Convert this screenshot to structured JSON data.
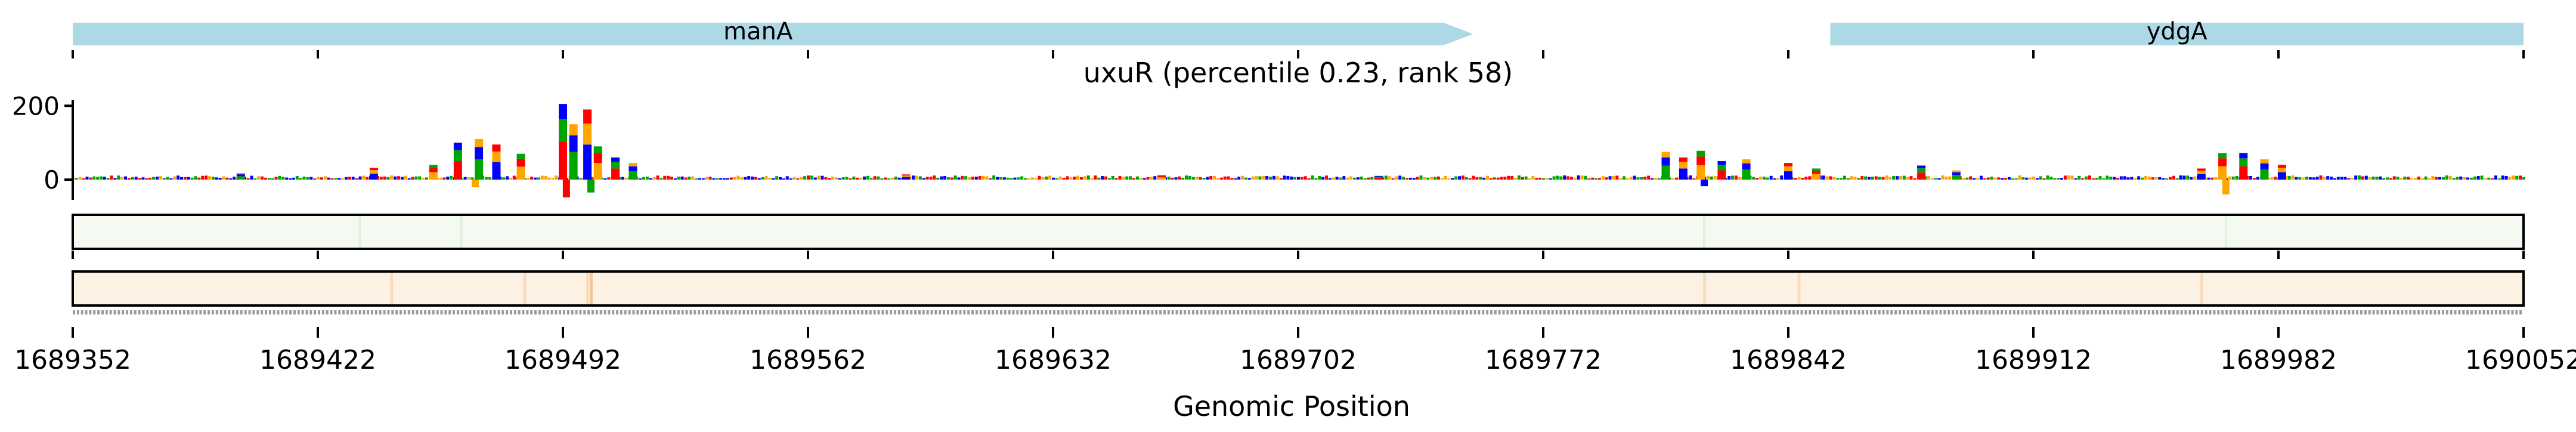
{
  "chart_data": {
    "type": "genome-track",
    "title": "uxuR (percentile 0.23, rank 58)",
    "xlabel": "Genomic Position",
    "xlim": [
      1689352,
      1690052
    ],
    "x_ticks": [
      1689352,
      1689422,
      1689492,
      1689562,
      1689632,
      1689702,
      1689772,
      1689842,
      1689912,
      1689982,
      1690052
    ],
    "x_tick_labels": [
      "1689352",
      "1689422",
      "1689492",
      "1689562",
      "1689632",
      "1689702",
      "1689772",
      "1689842",
      "1689912",
      "1689982",
      "1690052"
    ],
    "genes": [
      {
        "name": "manA",
        "start": 1689352,
        "end": 1689752,
        "strand": "+"
      },
      {
        "name": "ydgA",
        "start": 1689854,
        "end": 1690052,
        "strand": "+"
      }
    ],
    "logo_track": {
      "y_ticks": [
        0,
        200
      ],
      "ylim": [
        -55,
        215
      ],
      "peaks": [
        {
          "x": 1689400,
          "value": 18
        },
        {
          "x": 1689438,
          "value": 32
        },
        {
          "x": 1689455,
          "value": 40
        },
        {
          "x": 1689462,
          "value": 100
        },
        {
          "x": 1689468,
          "value": 110
        },
        {
          "x": 1689473,
          "value": 95
        },
        {
          "x": 1689480,
          "value": 70
        },
        {
          "x": 1689492,
          "value": 205
        },
        {
          "x": 1689495,
          "value": 150
        },
        {
          "x": 1689499,
          "value": 190
        },
        {
          "x": 1689502,
          "value": 90
        },
        {
          "x": 1689507,
          "value": 60
        },
        {
          "x": 1689512,
          "value": 45
        },
        {
          "x": 1689590,
          "value": 14
        },
        {
          "x": 1689663,
          "value": 12
        },
        {
          "x": 1689725,
          "value": 10
        },
        {
          "x": 1689807,
          "value": 75
        },
        {
          "x": 1689812,
          "value": 60
        },
        {
          "x": 1689817,
          "value": 78
        },
        {
          "x": 1689823,
          "value": 50
        },
        {
          "x": 1689830,
          "value": 55
        },
        {
          "x": 1689842,
          "value": 45
        },
        {
          "x": 1689850,
          "value": 30
        },
        {
          "x": 1689880,
          "value": 38
        },
        {
          "x": 1689890,
          "value": 25
        },
        {
          "x": 1689960,
          "value": 30
        },
        {
          "x": 1689966,
          "value": 72
        },
        {
          "x": 1689972,
          "value": 72
        },
        {
          "x": 1689978,
          "value": 55
        },
        {
          "x": 1689983,
          "value": 40
        }
      ],
      "troughs": [
        {
          "x": 1689467,
          "value": -20
        },
        {
          "x": 1689493,
          "value": -48
        },
        {
          "x": 1689500,
          "value": -35
        },
        {
          "x": 1689818,
          "value": -18
        },
        {
          "x": 1689967,
          "value": -40
        }
      ]
    },
    "heat_track_1": {
      "color": "#f4faf1",
      "highlights": [
        1689434,
        1689463,
        1689818,
        1689967
      ]
    },
    "heat_track_2": {
      "color": "#fdf1e4",
      "highlights": [
        1689443,
        1689481,
        1689499,
        1689500,
        1689818,
        1689845,
        1689960
      ]
    },
    "colors": {
      "gene": "#add8e6",
      "A": "#00a600",
      "C": "#0000ff",
      "G": "#ffa500",
      "T": "#ff0000"
    }
  }
}
